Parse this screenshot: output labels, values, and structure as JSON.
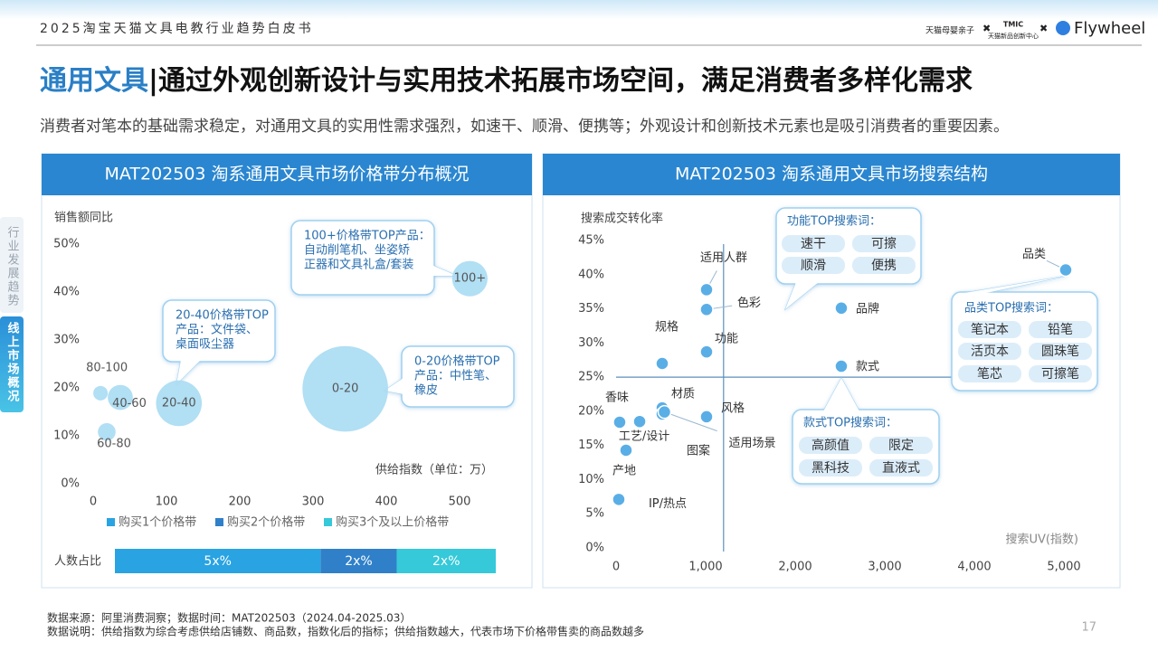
{
  "header": {
    "report_title": "2025淘宝天猫文具电教行业趋势白皮书",
    "logos": [
      "天猫母婴亲子",
      "TMIC",
      "天猫新品创新中心",
      "Flywheel"
    ]
  },
  "title": {
    "highlight": "通用文具",
    "text": "|通过外观创新设计与实用技术拓展市场空间，满足消费者多样化需求"
  },
  "subtitle": "消费者对笔本的基础需求稳定，对通用文具的实用性需求强烈，如速干、顺滑、便携等；外观设计和创新技术元素也是吸引消费者的重要因素。",
  "side_tabs": [
    "行业发展趋势",
    "线上市场概况"
  ],
  "chart_data": [
    {
      "type": "bubble",
      "title": "MAT202503 淘系通用文具市场价格带分布概况",
      "y_label": "销售额同比",
      "x_label": "供给指数（单位：万）",
      "labels": [
        "80-100",
        "40-60",
        "60-80",
        "20-40",
        "0-20",
        "100+"
      ],
      "x": [
        10,
        37,
        18.5,
        117,
        344,
        514
      ],
      "values": [
        18.9,
        18,
        10.8,
        16.8,
        19.8,
        42.8
      ],
      "sizes": [
        1,
        3,
        1.5,
        10,
        35,
        6
      ],
      "color": "#a9dcf3",
      "xlim": [
        0,
        550
      ],
      "xticks": [
        0,
        100,
        200,
        300,
        400,
        500
      ],
      "ylim": [
        0,
        50
      ],
      "yticks": [
        {
          "value": 0,
          "label": "0%"
        },
        {
          "value": 10,
          "label": "10%"
        },
        {
          "value": 20,
          "label": "20%"
        },
        {
          "value": 30,
          "label": "30%"
        },
        {
          "value": 40,
          "label": "40%"
        },
        {
          "value": 50,
          "label": "50%"
        }
      ],
      "annotations": [
        {
          "lines": [
            "100+价格带TOP产品：",
            "自动削笔机、坐姿矫",
            "正器和文具礼盒/套装"
          ]
        },
        {
          "lines": [
            "20-40价格带TOP",
            "产品：文件袋、",
            "桌面吸尘器"
          ]
        },
        {
          "lines": [
            "0-20价格带TOP",
            "产品：中性笔、",
            "橡皮"
          ]
        }
      ],
      "share_bar": {
        "label": "人数占比",
        "categories": [
          "购买1个价格带",
          "购买2个价格带",
          "购买3个及以上价格带"
        ],
        "colors": [
          "#29a3e2",
          "#2f80c9",
          "#35c9d9"
        ],
        "values": [
          54,
          20,
          26
        ],
        "value_labels": [
          "5x%",
          "2x%",
          "2x%"
        ]
      }
    },
    {
      "type": "scatter",
      "title": "MAT202503 淘系通用文具市场搜索结构",
      "y_label": "搜索成交转化率",
      "x_label": "搜索UV(指数)",
      "labels": [
        "品类",
        "品牌",
        "款式",
        "适用人群",
        "色彩",
        "功能",
        "规格",
        "风格",
        "材质",
        "图案",
        "工艺/设计",
        "香味",
        "产地",
        "IP/热点",
        "适用场景"
      ],
      "x": [
        5020,
        2515,
        2515,
        1010,
        1010,
        1010,
        515,
        1010,
        515,
        515,
        263,
        40,
        111,
        30,
        540
      ],
      "values": [
        40.7,
        35.1,
        26.6,
        37.8,
        34.9,
        28.7,
        27.0,
        19.2,
        20.5,
        19.6,
        18.5,
        18.4,
        14.3,
        7.1,
        19.9
      ],
      "color": "#5aaee6",
      "xlim": [
        0,
        5000
      ],
      "xticks": [
        0,
        {
          "value": 1000,
          "label": "1,000"
        },
        {
          "value": 2000,
          "label": "2,000"
        },
        {
          "value": 3000,
          "label": "3,000"
        },
        {
          "value": 4000,
          "label": "4,000"
        },
        {
          "value": 5000,
          "label": "5,000"
        }
      ],
      "ylim": [
        0,
        45
      ],
      "yticks": [
        {
          "value": 0,
          "label": "0%"
        },
        {
          "value": 5,
          "label": "5%"
        },
        {
          "value": 10,
          "label": "10%"
        },
        {
          "value": 15,
          "label": "15%"
        },
        {
          "value": 20,
          "label": "20%"
        },
        {
          "value": 25,
          "label": "25%"
        },
        {
          "value": 30,
          "label": "30%"
        },
        {
          "value": 35,
          "label": "35%"
        },
        {
          "value": 40,
          "label": "40%"
        },
        {
          "value": 45,
          "label": "45%"
        }
      ],
      "crosshair": {
        "x": 1200,
        "y": 25
      },
      "keyword_boxes": [
        {
          "title": "功能TOP搜索词：",
          "keywords": [
            "速干",
            "可擦",
            "顺滑",
            "便携"
          ]
        },
        {
          "title": "品类TOP搜索词：",
          "keywords": [
            "笔记本",
            "铅笔",
            "活页本",
            "圆珠笔",
            "笔芯",
            "可擦笔"
          ]
        },
        {
          "title": "款式TOP搜索词：",
          "keywords": [
            "高颜值",
            "限定",
            "黑科技",
            "直液式"
          ]
        }
      ]
    }
  ],
  "footer": {
    "source": "数据来源：阿里消费洞察；数据时间：MAT202503（2024.04-2025.03）",
    "note": "数据说明：供给指数为综合考虑供给店铺数、商品数，指数化后的指标；供给指数越大，代表市场下价格带售卖的商品数越多",
    "page": "17"
  }
}
